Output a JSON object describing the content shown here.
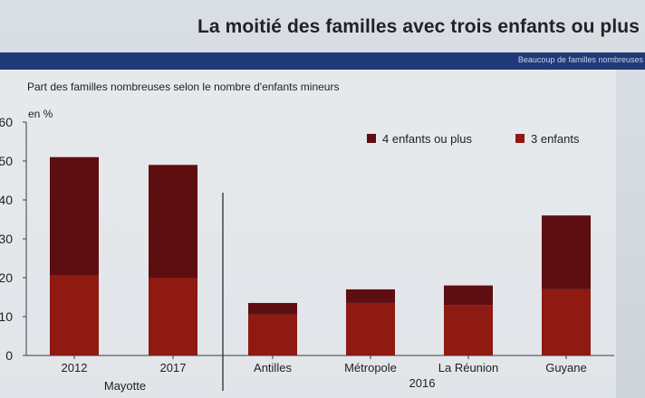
{
  "header": {
    "title": "La moitié des familles avec trois enfants ou plus",
    "band_text": "Beaucoup de familles nombreuses"
  },
  "chart_data": {
    "type": "bar",
    "stacked": true,
    "subtitle": "Part des familles nombreuses selon le nombre d'enfants mineurs",
    "unit_label": "en %",
    "ylim": [
      0,
      60
    ],
    "yticks": [
      "0",
      "10",
      "20",
      "30",
      "40",
      "50",
      "60"
    ],
    "grid": false,
    "legend_position": "top-right",
    "categories": [
      "2012",
      "2017",
      "Antilles",
      "Métropole",
      "La Réunion",
      "Guyane"
    ],
    "groups": [
      {
        "label": "Mayotte",
        "categories": [
          "2012",
          "2017"
        ]
      },
      {
        "label": "2016",
        "categories": [
          "Antilles",
          "Métropole",
          "La Réunion",
          "Guyane"
        ]
      }
    ],
    "series": [
      {
        "name": "3 enfants",
        "color": "#8e1a12",
        "values": [
          20.5,
          20,
          10.5,
          13.5,
          13,
          17
        ]
      },
      {
        "name": "4 enfants ou plus",
        "color": "#5e0e10",
        "values": [
          30.5,
          29,
          3,
          3.5,
          5,
          19
        ]
      }
    ]
  }
}
